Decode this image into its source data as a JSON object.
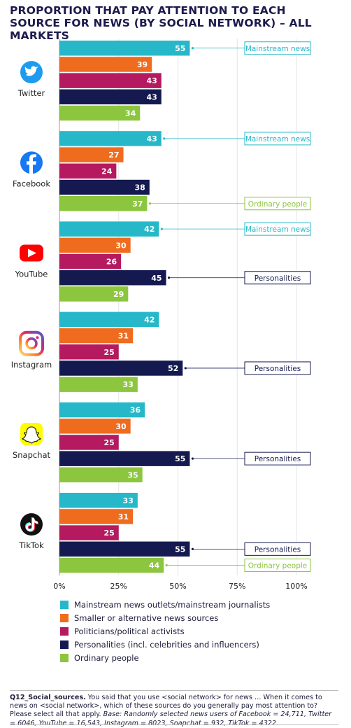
{
  "title": "PROPORTION THAT PAY ATTENTION TO EACH SOURCE FOR NEWS (BY SOCIAL NETWORK) – ALL MARKETS",
  "colors": {
    "mainstream": "#26b8c8",
    "smaller": "#ef6c1f",
    "politicians": "#b5195f",
    "personalities": "#141a4f",
    "ordinary": "#8cc63f",
    "twitter": "#1d9bf0",
    "facebook": "#1877f2",
    "youtube": "#ff0000",
    "snapchat": "#fffc00",
    "tiktok": "#111111"
  },
  "chart_data": {
    "type": "bar",
    "orientation": "horizontal",
    "categories": [
      "Twitter",
      "Facebook",
      "YouTube",
      "Instagram",
      "Snapchat",
      "TikTok"
    ],
    "series": [
      {
        "name": "Mainstream news outlets/mainstream journalists",
        "key": "mainstream",
        "values": [
          55,
          43,
          42,
          42,
          36,
          33
        ]
      },
      {
        "name": "Smaller or alternative news sources",
        "key": "smaller",
        "values": [
          39,
          27,
          30,
          31,
          30,
          31
        ]
      },
      {
        "name": "Politicians/political activists",
        "key": "politicians",
        "values": [
          43,
          24,
          26,
          25,
          25,
          25
        ]
      },
      {
        "name": "Personalities (incl. celebrities and influencers)",
        "key": "personalities",
        "values": [
          43,
          38,
          45,
          52,
          55,
          55
        ]
      },
      {
        "name": "Ordinary people",
        "key": "ordinary",
        "values": [
          34,
          37,
          29,
          33,
          35,
          44
        ]
      }
    ],
    "xlim": [
      0,
      100
    ],
    "x_ticks": [
      "0%",
      "25%",
      "50%",
      "75%",
      "100%"
    ],
    "callouts": [
      {
        "category": "Twitter",
        "series": "mainstream",
        "text": "Mainstream news"
      },
      {
        "category": "Facebook",
        "series": "mainstream",
        "text": "Mainstream news"
      },
      {
        "category": "Facebook",
        "series": "ordinary",
        "text": "Ordinary people"
      },
      {
        "category": "YouTube",
        "series": "mainstream",
        "text": "Mainstream news"
      },
      {
        "category": "YouTube",
        "series": "personalities",
        "text": "Personalities"
      },
      {
        "category": "Instagram",
        "series": "personalities",
        "text": "Personalities"
      },
      {
        "category": "Snapchat",
        "series": "personalities",
        "text": "Personalities"
      },
      {
        "category": "TikTok",
        "series": "personalities",
        "text": "Personalities"
      },
      {
        "category": "TikTok",
        "series": "ordinary",
        "text": "Ordinary people"
      }
    ],
    "legend_position": "bottom"
  },
  "note": {
    "question_id": "Q12_Social_sources.",
    "question_text": " You said that you use <social network> for news … When it comes to news on <social network>, which of these sources do you generally pay most attention to? Please select all that apply. ",
    "base": "Base: Randomly selected news users of Facebook = 24,711, Twitter = 6046, YouTube = 16,543, Instagram = 8023, Snapchat = 932, TikTok = 4322."
  }
}
